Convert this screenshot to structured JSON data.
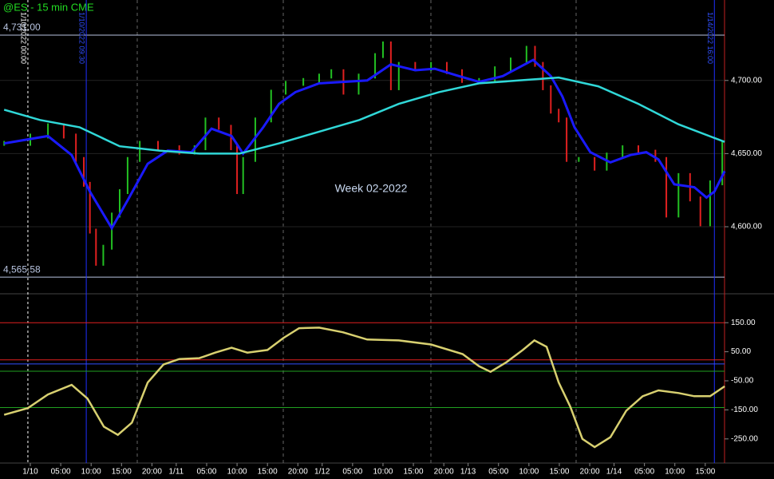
{
  "chart_data": {
    "type": "price-indicator",
    "title": "@ES - 15 min  CME",
    "annotation": "Week 02-2022",
    "xlim": [
      -4.33,
      114.17
    ],
    "xticks": [
      {
        "value": 0,
        "label": "1/10"
      },
      {
        "value": 5,
        "label": "05:00"
      },
      {
        "value": 10,
        "label": "10:00"
      },
      {
        "value": 15,
        "label": "15:00"
      },
      {
        "value": 20,
        "label": "20:00"
      },
      {
        "value": 24,
        "label": "1/11"
      },
      {
        "value": 29,
        "label": "05:00"
      },
      {
        "value": 34,
        "label": "10:00"
      },
      {
        "value": 39,
        "label": "15:00"
      },
      {
        "value": 44,
        "label": "20:00"
      },
      {
        "value": 48,
        "label": "1/12"
      },
      {
        "value": 53,
        "label": "05:00"
      },
      {
        "value": 58,
        "label": "10:00"
      },
      {
        "value": 63,
        "label": "15:00"
      },
      {
        "value": 68,
        "label": "20:00"
      },
      {
        "value": 72,
        "label": "1/13"
      },
      {
        "value": 77,
        "label": "05:00"
      },
      {
        "value": 82,
        "label": "10:00"
      },
      {
        "value": 87,
        "label": "15:00"
      },
      {
        "value": 92,
        "label": "20:00"
      },
      {
        "value": 96,
        "label": "1/14"
      },
      {
        "value": 101,
        "label": "05:00"
      },
      {
        "value": 106,
        "label": "10:00"
      },
      {
        "value": 111,
        "label": "15:00"
      }
    ],
    "markers": [
      {
        "x": -0.4,
        "label": "1/10/2022 00:00",
        "color": "#ffffff"
      },
      {
        "x": 9.2,
        "label": "1/10/2022 09:30",
        "color": "#2030ff"
      },
      {
        "x": 112.5,
        "label": "1/14/2022 16:00",
        "color": "#2030ff"
      }
    ],
    "price": {
      "ylim": [
        4555.8,
        4755
      ],
      "yticks": [
        {
          "value": 4600,
          "label": "4,600.00"
        },
        {
          "value": 4650,
          "label": "4,650.00"
        },
        {
          "value": 4700,
          "label": "4,700.00"
        }
      ],
      "levels": [
        {
          "value": 4731,
          "label": "4,731.00"
        },
        {
          "value": 4565.58,
          "label": "4,565.58"
        }
      ],
      "bars": {
        "name": "@ES",
        "up_color": "#22c022",
        "down_color": "#e02020",
        "x": [
          -4.3,
          0,
          2.9,
          5.5,
          7.5,
          8.8,
          9.8,
          10.8,
          12,
          13.4,
          14.7,
          16,
          18,
          21,
          24.5,
          27,
          28.8,
          31,
          33,
          34,
          35,
          37,
          39.6,
          42,
          44.9,
          47.5,
          49.5,
          51.5,
          54,
          56.7,
          58,
          59.3,
          60.6,
          63.3,
          65.9,
          68.5,
          71,
          73.8,
          76.4,
          79,
          81.6,
          83,
          84.3,
          85.6,
          86.9,
          88.2,
          90.2,
          92.8,
          94.8,
          97.4,
          100,
          102.8,
          104.6,
          106.6,
          108.5,
          110.2,
          111.8,
          113.8
        ],
        "values": [
          4657,
          4662,
          4669,
          4662,
          4646,
          4629,
          4597,
          4575,
          4586,
          4608,
          4624,
          4646,
          4657,
          4654,
          4651,
          4654,
          4673,
          4668,
          4654,
          4624,
          4646,
          4673,
          4692,
          4698,
          4700,
          4703,
          4706,
          4692,
          4703,
          4717,
          4725,
          4695,
          4711,
          4708,
          4711,
          4706,
          4700,
          4700,
          4708,
          4714,
          4722,
          4711,
          4695,
          4679,
          4673,
          4646,
          4646,
          4640,
          4649,
          4654,
          4651,
          4646,
          4608,
          4635,
          4619,
          4602,
          4630,
          4657
        ]
      },
      "series": [
        {
          "color": "#1a1aff",
          "x": [
            -4.3,
            2.9,
            6.8,
            9.8,
            13.4,
            16,
            19.3,
            22.6,
            26.5,
            29.8,
            33.1,
            35,
            38.3,
            40.9,
            43.6,
            47.5,
            51.4,
            55.4,
            59.3,
            63.3,
            66.5,
            70.5,
            73.8,
            77.7,
            82.7,
            85.6,
            87.5,
            89.5,
            92.1,
            95.4,
            98.7,
            101.3,
            103.3,
            105.9,
            109.2,
            111.2,
            112.5,
            114.2
          ],
          "values": [
            4657,
            4662,
            4649,
            4624,
            4599,
            4618,
            4643,
            4652,
            4651,
            4667,
            4662,
            4650,
            4668,
            4684,
            4692,
            4698,
            4699,
            4700,
            4711,
            4707,
            4708,
            4703,
            4699,
            4703,
            4714,
            4703,
            4689,
            4668,
            4651,
            4644,
            4649,
            4651,
            4646,
            4629,
            4627,
            4620,
            4624,
            4638
          ]
        },
        {
          "color": "#30d8d8",
          "x": [
            -4.3,
            1.6,
            8.1,
            14.7,
            21.3,
            27.8,
            34.4,
            40.9,
            47.5,
            54.1,
            60.6,
            67.2,
            73.8,
            80.3,
            86.9,
            93.4,
            100,
            106.6,
            114.2
          ],
          "values": [
            4680,
            4673,
            4668,
            4655,
            4652,
            4650,
            4650,
            4657,
            4665,
            4673,
            4684,
            4692,
            4698,
            4700,
            4702,
            4696,
            4684,
            4670,
            4658
          ]
        }
      ]
    },
    "indicator": {
      "ylim": [
        -333,
        244
      ],
      "yticks": [
        {
          "value": 150,
          "label": "150.00"
        },
        {
          "value": 50,
          "label": "50.00"
        },
        {
          "value": -50,
          "label": "-50.00"
        },
        {
          "value": -150,
          "label": "-150.00"
        },
        {
          "value": -250,
          "label": "-250.00"
        }
      ],
      "levels": [
        {
          "value": 150,
          "color": "#e02020"
        },
        {
          "value": 22,
          "color": "#e02020"
        },
        {
          "value": 8,
          "color": "#3050ff"
        },
        {
          "value": -17,
          "color": "#20a020"
        },
        {
          "value": -142,
          "color": "#20a020"
        }
      ],
      "series": [
        {
          "color": "#d8d070",
          "x": [
            -4.3,
            -0.4,
            2.9,
            6.8,
            9.4,
            12.1,
            14.4,
            16.7,
            19.3,
            21.9,
            24.5,
            27.8,
            30.4,
            33.1,
            35.7,
            39,
            41.6,
            44.2,
            47.5,
            51.4,
            55.4,
            60.6,
            65.9,
            71.1,
            73.8,
            75.7,
            78.3,
            81,
            82.9,
            84.9,
            86.9,
            88.8,
            90.8,
            92.8,
            95.4,
            98,
            100.7,
            103.3,
            106.6,
            109.2,
            111.8,
            114.2
          ],
          "values": [
            -167,
            -144,
            -97,
            -64,
            -111,
            -208,
            -236,
            -194,
            -56,
            6,
            25,
            28,
            47,
            64,
            47,
            56,
            97,
            131,
            133,
            117,
            92,
            89,
            75,
            42,
            0,
            -19,
            14,
            56,
            89,
            67,
            -56,
            -139,
            -250,
            -278,
            -244,
            -153,
            -103,
            -83,
            -92,
            -103,
            -103,
            -69
          ]
        }
      ]
    }
  }
}
